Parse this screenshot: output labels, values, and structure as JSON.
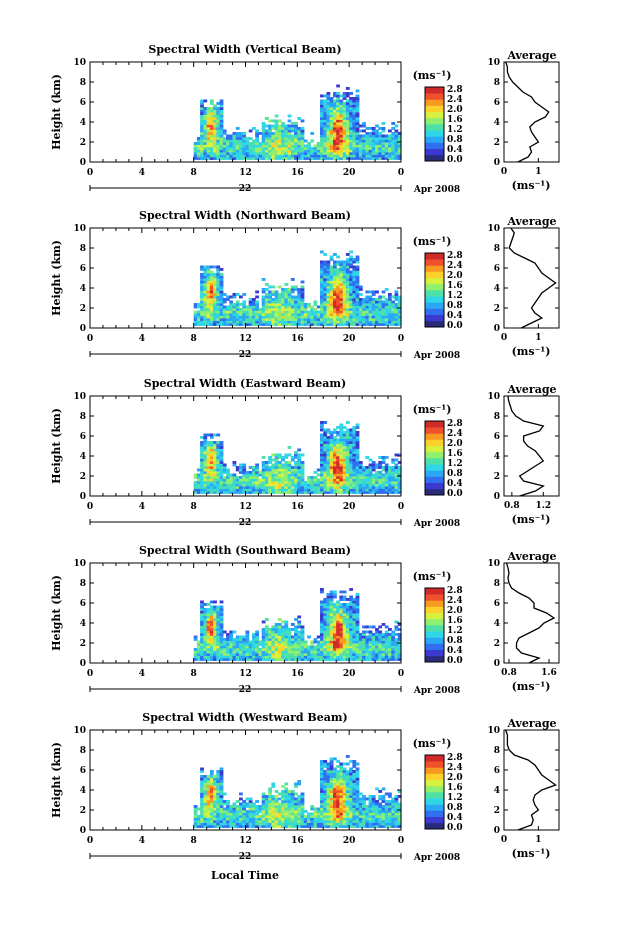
{
  "figure": {
    "x_label": "Local Time",
    "date_label": "Apr 2008",
    "date_day": "22",
    "colorbar_unit": "(ms⁻¹)",
    "average_title": "Average",
    "average_unit": "(ms⁻¹)"
  },
  "colorbar": {
    "ticks": [
      "0.0",
      "0.4",
      "0.8",
      "1.2",
      "1.6",
      "2.0",
      "2.4",
      "2.8"
    ],
    "colors": [
      "#2a2a7a",
      "#3a3ad0",
      "#2f6ff0",
      "#2aa7f5",
      "#2fd6e6",
      "#4fe0a8",
      "#8ff070",
      "#d8f040",
      "#fbd12a",
      "#f89a20",
      "#f0502a",
      "#d02a2a"
    ]
  },
  "chart_data": [
    {
      "type": "heatmap",
      "title": "Spectral Width (Vertical Beam)",
      "ylabel": "Height (km)",
      "xlabel": "",
      "x_ticks": [
        "0",
        "4",
        "8",
        "12",
        "16",
        "20",
        "0"
      ],
      "y_ticks": [
        "0",
        "2",
        "4",
        "6",
        "8",
        "10"
      ],
      "xlim": [
        0,
        24
      ],
      "ylim": [
        0,
        10
      ],
      "z_range": [
        0.0,
        2.8
      ],
      "average_profile": {
        "x_ticks": [
          "0",
          "1"
        ],
        "xlim": [
          0,
          1.6
        ],
        "width": [
          0.4,
          0.7,
          0.8,
          0.75,
          1.0,
          0.9,
          0.8,
          0.75,
          0.9,
          1.2,
          1.3,
          1.1,
          0.9,
          0.8,
          0.55,
          0.4,
          0.25,
          0.15,
          0.1,
          0.1,
          0.05
        ],
        "height": [
          0,
          0.5,
          1,
          1.5,
          2,
          2.5,
          3,
          3.5,
          4,
          4.5,
          5,
          5.5,
          6,
          6.5,
          7,
          7.5,
          8,
          8.5,
          9,
          9.5,
          10
        ]
      }
    },
    {
      "type": "heatmap",
      "title": "Spectral Width (Northward Beam)",
      "ylabel": "Height (km)",
      "xlabel": "",
      "x_ticks": [
        "0",
        "4",
        "8",
        "12",
        "16",
        "20",
        "0"
      ],
      "y_ticks": [
        "0",
        "2",
        "4",
        "6",
        "8",
        "10"
      ],
      "xlim": [
        0,
        24
      ],
      "ylim": [
        0,
        10
      ],
      "z_range": [
        0.0,
        2.8
      ],
      "average_profile": {
        "x_ticks": [
          "0",
          "1"
        ],
        "xlim": [
          0,
          1.6
        ],
        "width": [
          0.5,
          0.8,
          1.1,
          0.9,
          0.8,
          0.9,
          1.0,
          1.1,
          1.3,
          1.5,
          1.3,
          1.1,
          1.0,
          0.9,
          0.6,
          0.3,
          0.15,
          0.2,
          0.25,
          0.3,
          0.2
        ],
        "height": [
          0,
          0.5,
          1,
          1.5,
          2,
          2.5,
          3,
          3.5,
          4,
          4.5,
          5,
          5.5,
          6,
          6.5,
          7,
          7.5,
          8,
          8.5,
          9,
          9.5,
          10
        ]
      }
    },
    {
      "type": "heatmap",
      "title": "Spectral Width (Eastward Beam)",
      "ylabel": "Height (km)",
      "xlabel": "",
      "x_ticks": [
        "0",
        "4",
        "8",
        "12",
        "16",
        "20",
        "0"
      ],
      "y_ticks": [
        "0",
        "2",
        "4",
        "6",
        "8",
        "10"
      ],
      "xlim": [
        0,
        24
      ],
      "ylim": [
        0,
        10
      ],
      "z_range": [
        0.0,
        2.8
      ],
      "average_profile": {
        "x_ticks": [
          "0.8",
          "1.2"
        ],
        "xlim": [
          0.7,
          1.4
        ],
        "width": [
          0.9,
          1.1,
          1.2,
          0.95,
          0.9,
          1.0,
          1.1,
          1.2,
          1.15,
          1.1,
          1.0,
          0.95,
          0.95,
          1.15,
          1.2,
          0.95,
          0.85,
          0.8,
          0.78,
          0.76,
          0.75
        ],
        "height": [
          0,
          0.5,
          1,
          1.5,
          2,
          2.5,
          3,
          3.5,
          4,
          4.5,
          5,
          5.5,
          6,
          6.5,
          7,
          7.5,
          8,
          8.5,
          9,
          9.5,
          10
        ]
      }
    },
    {
      "type": "heatmap",
      "title": "Spectral Width (Southward Beam)",
      "ylabel": "Height (km)",
      "xlabel": "",
      "x_ticks": [
        "0",
        "4",
        "8",
        "12",
        "16",
        "20",
        "0"
      ],
      "y_ticks": [
        "0",
        "2",
        "4",
        "6",
        "8",
        "10"
      ],
      "xlim": [
        0,
        24
      ],
      "ylim": [
        0,
        10
      ],
      "z_range": [
        0.0,
        2.8
      ],
      "average_profile": {
        "x_ticks": [
          "0.8",
          "1.6"
        ],
        "xlim": [
          0.7,
          1.8
        ],
        "width": [
          1.2,
          1.4,
          1.05,
          0.95,
          0.95,
          1.0,
          1.2,
          1.4,
          1.5,
          1.7,
          1.55,
          1.3,
          1.3,
          1.2,
          1.0,
          0.85,
          0.8,
          0.78,
          0.8,
          0.78,
          0.75
        ],
        "height": [
          0,
          0.5,
          1,
          1.5,
          2,
          2.5,
          3,
          3.5,
          4,
          4.5,
          5,
          5.5,
          6,
          6.5,
          7,
          7.5,
          8,
          8.5,
          9,
          9.5,
          10
        ]
      }
    },
    {
      "type": "heatmap",
      "title": "Spectral Width (Westward Beam)",
      "ylabel": "Height (km)",
      "xlabel": "Local Time",
      "x_ticks": [
        "0",
        "4",
        "8",
        "12",
        "16",
        "20",
        "0"
      ],
      "y_ticks": [
        "0",
        "2",
        "4",
        "6",
        "8",
        "10"
      ],
      "xlim": [
        0,
        24
      ],
      "ylim": [
        0,
        10
      ],
      "z_range": [
        0.0,
        2.8
      ],
      "average_profile": {
        "x_ticks": [
          "0",
          "1"
        ],
        "xlim": [
          0,
          1.6
        ],
        "width": [
          0.4,
          0.8,
          0.85,
          0.8,
          1.0,
          0.9,
          0.85,
          0.9,
          1.1,
          1.5,
          1.3,
          1.1,
          1.0,
          0.9,
          0.7,
          0.3,
          0.15,
          0.1,
          0.1,
          0.1,
          0.05
        ],
        "height": [
          0,
          0.5,
          1,
          1.5,
          2,
          2.5,
          3,
          3.5,
          4,
          4.5,
          5,
          5.5,
          6,
          6.5,
          7,
          7.5,
          8,
          8.5,
          9,
          9.5,
          10
        ]
      }
    }
  ]
}
